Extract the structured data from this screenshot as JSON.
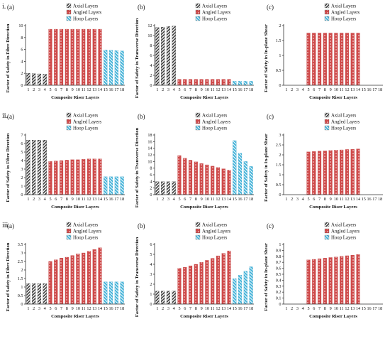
{
  "figure": {
    "row_labels": [
      "i.",
      "ii.",
      "iii."
    ],
    "series_names": [
      "Axial Layers",
      "Angled Layers",
      "Hoop Layers"
    ],
    "series_colors": {
      "Axial Layers": "#3a3a3a",
      "Angled Layers": "#cf4a4a",
      "Hoop Layers": "#44b3d9"
    },
    "categories": [
      "1",
      "2",
      "3",
      "4",
      "5",
      "6",
      "7",
      "8",
      "9",
      "10",
      "11",
      "12",
      "13",
      "14",
      "15",
      "16",
      "17",
      "18"
    ],
    "axial_range": [
      1,
      4
    ],
    "angled_range": [
      5,
      14
    ],
    "hoop_range": [
      15,
      18
    ]
  },
  "chart_data": [
    {
      "type": "bar",
      "panel": "i.(a)",
      "letter": "(a)",
      "ylabel": "Factor of Safety in Fibre Direction",
      "xlabel": "Composite Riser Layers",
      "ylim": [
        0,
        10
      ],
      "yticks": [
        0,
        2,
        4,
        6,
        8,
        10
      ],
      "values": [
        2.0,
        1.95,
        1.9,
        1.85,
        9.4,
        9.4,
        9.4,
        9.4,
        9.4,
        9.4,
        9.4,
        9.4,
        9.4,
        9.4,
        5.9,
        5.85,
        5.8,
        5.75
      ]
    },
    {
      "type": "bar",
      "panel": "i.(b)",
      "letter": "(b)",
      "ylabel": "Factor of Safety in Transverse Direction",
      "xlabel": "Composite Riser Layers",
      "ylim": [
        0,
        12
      ],
      "yticks": [
        0,
        2,
        4,
        6,
        8,
        10,
        12
      ],
      "values": [
        11.6,
        11.7,
        11.8,
        11.9,
        1.2,
        1.2,
        1.2,
        1.2,
        1.2,
        1.2,
        1.2,
        1.2,
        1.2,
        1.2,
        0.8,
        0.8,
        0.8,
        0.8
      ]
    },
    {
      "type": "bar",
      "panel": "i.(c)",
      "letter": "(c)",
      "ylabel": "Factor of Safety in In-plane Shear",
      "xlabel": "Composite Riser Layers",
      "ylim": [
        0,
        2
      ],
      "yticks": [
        0,
        0.5,
        1,
        1.5,
        2
      ],
      "values": [
        0,
        0,
        0,
        0,
        1.75,
        1.75,
        1.75,
        1.75,
        1.75,
        1.75,
        1.75,
        1.75,
        1.75,
        1.75,
        0,
        0,
        0,
        0
      ]
    },
    {
      "type": "bar",
      "panel": "ii.(a)",
      "letter": "(a)",
      "ylabel": "Factor of Safety in Fibre Direction",
      "xlabel": "Composite Riser Layers",
      "ylim": [
        0,
        7
      ],
      "yticks": [
        0,
        1,
        2,
        3,
        4,
        5,
        6,
        7
      ],
      "values": [
        6.4,
        6.4,
        6.4,
        6.4,
        3.9,
        3.95,
        4.0,
        4.05,
        4.1,
        4.1,
        4.15,
        4.2,
        4.2,
        4.2,
        2.1,
        2.1,
        2.1,
        2.1
      ]
    },
    {
      "type": "bar",
      "panel": "ii.(b)",
      "letter": "(b)",
      "ylabel": "Factor of Safety in Transverse Direction",
      "xlabel": "Composite Riser Layers",
      "ylim": [
        0,
        18
      ],
      "yticks": [
        0,
        2,
        4,
        6,
        8,
        10,
        12,
        14,
        16,
        18
      ],
      "values": [
        3.9,
        3.9,
        3.9,
        3.9,
        11.8,
        11.0,
        10.4,
        9.9,
        9.4,
        9.0,
        8.6,
        8.2,
        7.8,
        7.4,
        16.3,
        12.5,
        10.0,
        8.5
      ]
    },
    {
      "type": "bar",
      "panel": "ii.(c)",
      "letter": "(c)",
      "ylabel": "Factor of Safety in In-plane Shear",
      "xlabel": "Composite Riser Layers",
      "ylim": [
        0,
        3
      ],
      "yticks": [
        0,
        0.5,
        1,
        1.5,
        2,
        2.5,
        3
      ],
      "values": [
        0,
        0,
        0,
        0,
        2.15,
        2.17,
        2.19,
        2.2,
        2.22,
        2.24,
        2.25,
        2.27,
        2.28,
        2.3,
        0,
        0,
        0,
        0
      ]
    },
    {
      "type": "bar",
      "panel": "iii.(a)",
      "letter": "(a)",
      "ylabel": "Factor of Safety in Fibre Direction",
      "xlabel": "Composite Riser Layers",
      "ylim": [
        0,
        3.5
      ],
      "yticks": [
        0,
        0.5,
        1,
        1.5,
        2,
        2.5,
        3,
        3.5
      ],
      "values": [
        1.2,
        1.2,
        1.2,
        1.2,
        2.5,
        2.6,
        2.7,
        2.75,
        2.85,
        2.95,
        3.0,
        3.1,
        3.2,
        3.3,
        1.3,
        1.3,
        1.3,
        1.3
      ]
    },
    {
      "type": "bar",
      "panel": "iii.(b)",
      "letter": "(b)",
      "ylabel": "Factor of Safety in Transverse Direction",
      "xlabel": "Composite Riser Layers",
      "ylim": [
        0,
        6
      ],
      "yticks": [
        0,
        1,
        2,
        3,
        4,
        5,
        6
      ],
      "values": [
        1.3,
        1.3,
        1.3,
        1.3,
        3.6,
        3.7,
        3.85,
        4.0,
        4.2,
        4.4,
        4.6,
        4.85,
        5.1,
        5.35,
        2.55,
        2.9,
        3.3,
        3.75
      ]
    },
    {
      "type": "bar",
      "panel": "iii.(c)",
      "letter": "(c)",
      "ylabel": "Factor of Safety in In-plane Shear",
      "xlabel": "Composite Riser Layers",
      "ylim": [
        0,
        1
      ],
      "yticks": [
        0,
        0.1,
        0.2,
        0.3,
        0.4,
        0.5,
        0.6,
        0.7,
        0.8,
        0.9,
        1
      ],
      "values": [
        0,
        0,
        0,
        0,
        0.74,
        0.75,
        0.76,
        0.77,
        0.78,
        0.79,
        0.8,
        0.81,
        0.82,
        0.83,
        0,
        0,
        0,
        0
      ]
    }
  ]
}
